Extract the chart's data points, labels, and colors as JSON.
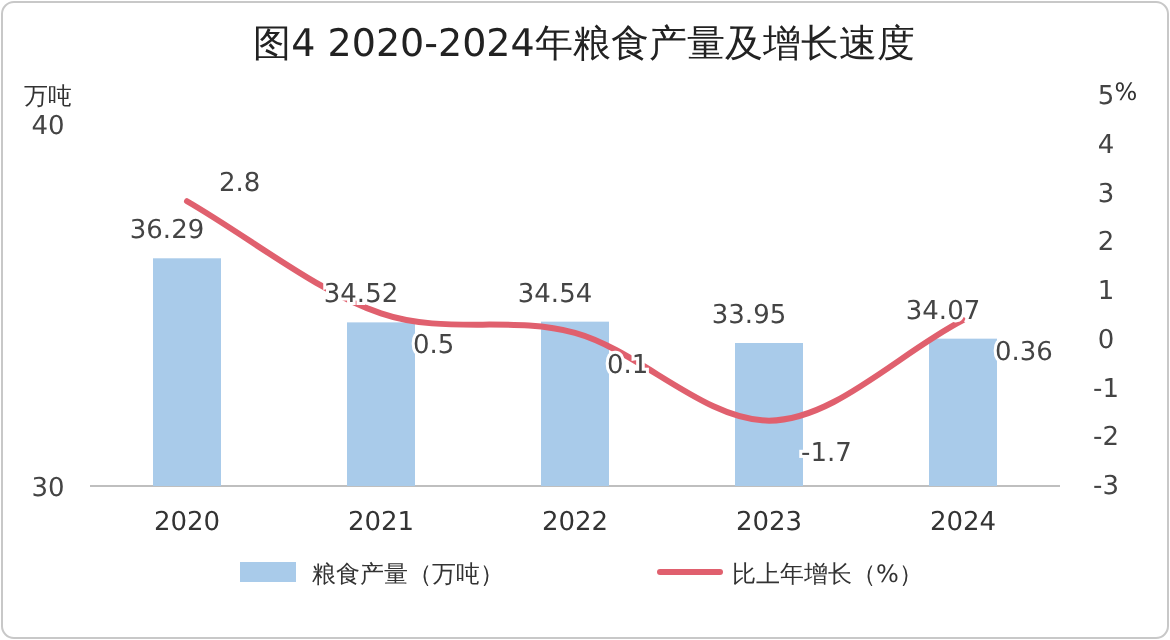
{
  "chart_data": {
    "type": "bar",
    "title": "图4 2020-2024年粮食产量及增长速度",
    "ylabel": "万吨",
    "y2label": "%",
    "categories": [
      "2020",
      "2021",
      "2022",
      "2023",
      "2024"
    ],
    "series": [
      {
        "name": "粮食产量（万吨）",
        "color": "#a9cbea",
        "values": [
          36.29,
          34.52,
          34.54,
          33.95,
          34.07
        ]
      },
      {
        "name": "比上年增长（%）",
        "type": "line",
        "axis": "y2",
        "color": "#e0606e",
        "values": [
          2.8,
          0.5,
          0.1,
          -1.7,
          0.36
        ]
      }
    ],
    "ylim": [
      30,
      40
    ],
    "yticks": [
      30,
      40
    ],
    "y2lim": [
      -3,
      5
    ],
    "y2ticks": [
      -3,
      -2,
      -1,
      0,
      1,
      2,
      3,
      4,
      5
    ],
    "data_labels": true,
    "legend": "bottom",
    "grid": false
  }
}
